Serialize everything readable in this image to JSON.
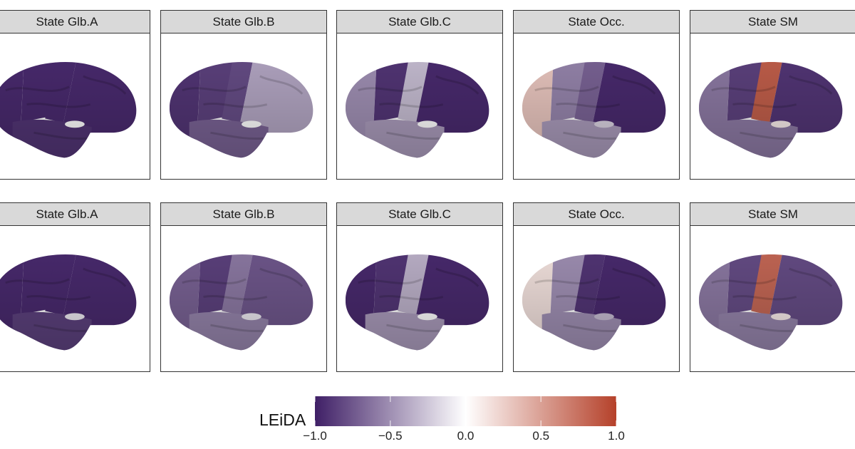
{
  "chart_data": {
    "type": "heatmap",
    "description_kind": "brain surface maps, faceted",
    "rows": [
      {
        "panels": [
          {
            "title": "State Glb.A",
            "regions": {
              "occipital": -0.95,
              "parietal": -0.95,
              "sensorimotor": -0.95,
              "frontal": -0.95,
              "temporal": -0.9,
              "insula": 0.0
            }
          },
          {
            "title": "State Glb.B",
            "regions": {
              "occipital": -0.9,
              "parietal": -0.85,
              "sensorimotor": -0.8,
              "frontal": -0.4,
              "temporal": -0.7,
              "insula": 0.0
            }
          },
          {
            "title": "State Glb.C",
            "regions": {
              "occipital": -0.5,
              "parietal": -0.9,
              "sensorimotor": -0.3,
              "frontal": -0.95,
              "temporal": -0.45,
              "insula": 0.0
            }
          },
          {
            "title": "State Occ.",
            "regions": {
              "occipital": 0.3,
              "parietal": -0.55,
              "sensorimotor": -0.7,
              "frontal": -0.95,
              "temporal": -0.45,
              "insula": -0.2
            }
          },
          {
            "title": "State SM",
            "regions": {
              "occipital": -0.6,
              "parietal": -0.85,
              "sensorimotor": 0.85,
              "frontal": -0.9,
              "temporal": -0.6,
              "insula": 0.1
            }
          }
        ]
      },
      {
        "panels": [
          {
            "title": "State Glb.A",
            "regions": {
              "occipital": -0.95,
              "parietal": -0.95,
              "sensorimotor": -0.95,
              "frontal": -0.95,
              "temporal": -0.85,
              "insula": -0.1
            }
          },
          {
            "title": "State Glb.B",
            "regions": {
              "occipital": -0.7,
              "parietal": -0.85,
              "sensorimotor": -0.6,
              "frontal": -0.75,
              "temporal": -0.55,
              "insula": -0.1
            }
          },
          {
            "title": "State Glb.C",
            "regions": {
              "occipital": -0.95,
              "parietal": -0.9,
              "sensorimotor": -0.35,
              "frontal": -0.95,
              "temporal": -0.45,
              "insula": 0.0
            }
          },
          {
            "title": "State Occ.",
            "regions": {
              "occipital": 0.15,
              "parietal": -0.5,
              "sensorimotor": -0.9,
              "frontal": -0.95,
              "temporal": -0.5,
              "insula": -0.3
            }
          },
          {
            "title": "State SM",
            "regions": {
              "occipital": -0.6,
              "parietal": -0.8,
              "sensorimotor": 0.8,
              "frontal": -0.8,
              "temporal": -0.55,
              "insula": 0.1
            }
          }
        ]
      }
    ],
    "colorbar": {
      "title": "LEiDA",
      "range": [
        -1.0,
        1.0
      ],
      "ticks": [
        "−1.0",
        "−0.5",
        "0.0",
        "0.5",
        "1.0"
      ],
      "tick_values": [
        -1.0,
        -0.5,
        0.0,
        0.5,
        1.0
      ],
      "colors": {
        "low": "#3f1f66",
        "mid": "#ffffff",
        "high": "#b5412a"
      },
      "placement": "bottom"
    }
  }
}
